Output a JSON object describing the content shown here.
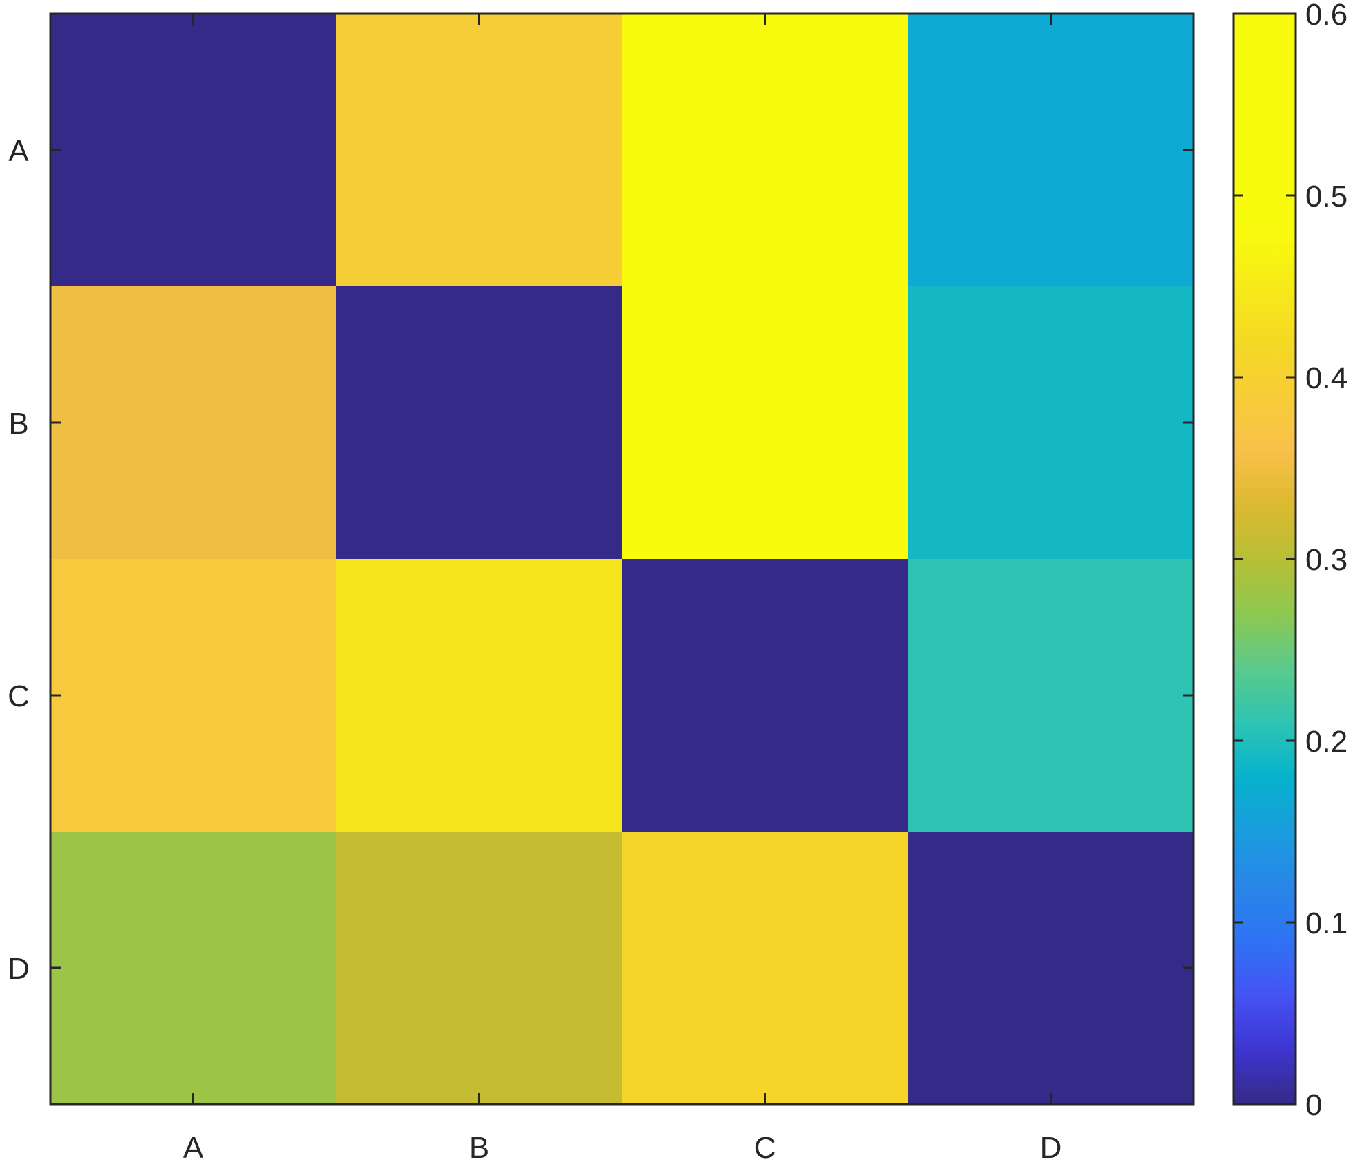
{
  "chart_data": {
    "type": "heatmap",
    "title": "",
    "xlabel": "",
    "ylabel": "",
    "x_categories": [
      "A",
      "B",
      "C",
      "D"
    ],
    "y_categories": [
      "A",
      "B",
      "C",
      "D"
    ],
    "values": [
      [
        0.0,
        0.39,
        0.48,
        0.17
      ],
      [
        0.35,
        0.0,
        0.48,
        0.19
      ],
      [
        0.38,
        0.44,
        0.0,
        0.21
      ],
      [
        0.28,
        0.31,
        0.41,
        0.0
      ]
    ],
    "colorbar": {
      "min": 0,
      "max": 0.6,
      "ticks": [
        "0",
        "0.1",
        "0.2",
        "0.3",
        "0.4",
        "0.5",
        "0.6"
      ],
      "colormap": "parula",
      "position": "right"
    },
    "grid": false
  }
}
